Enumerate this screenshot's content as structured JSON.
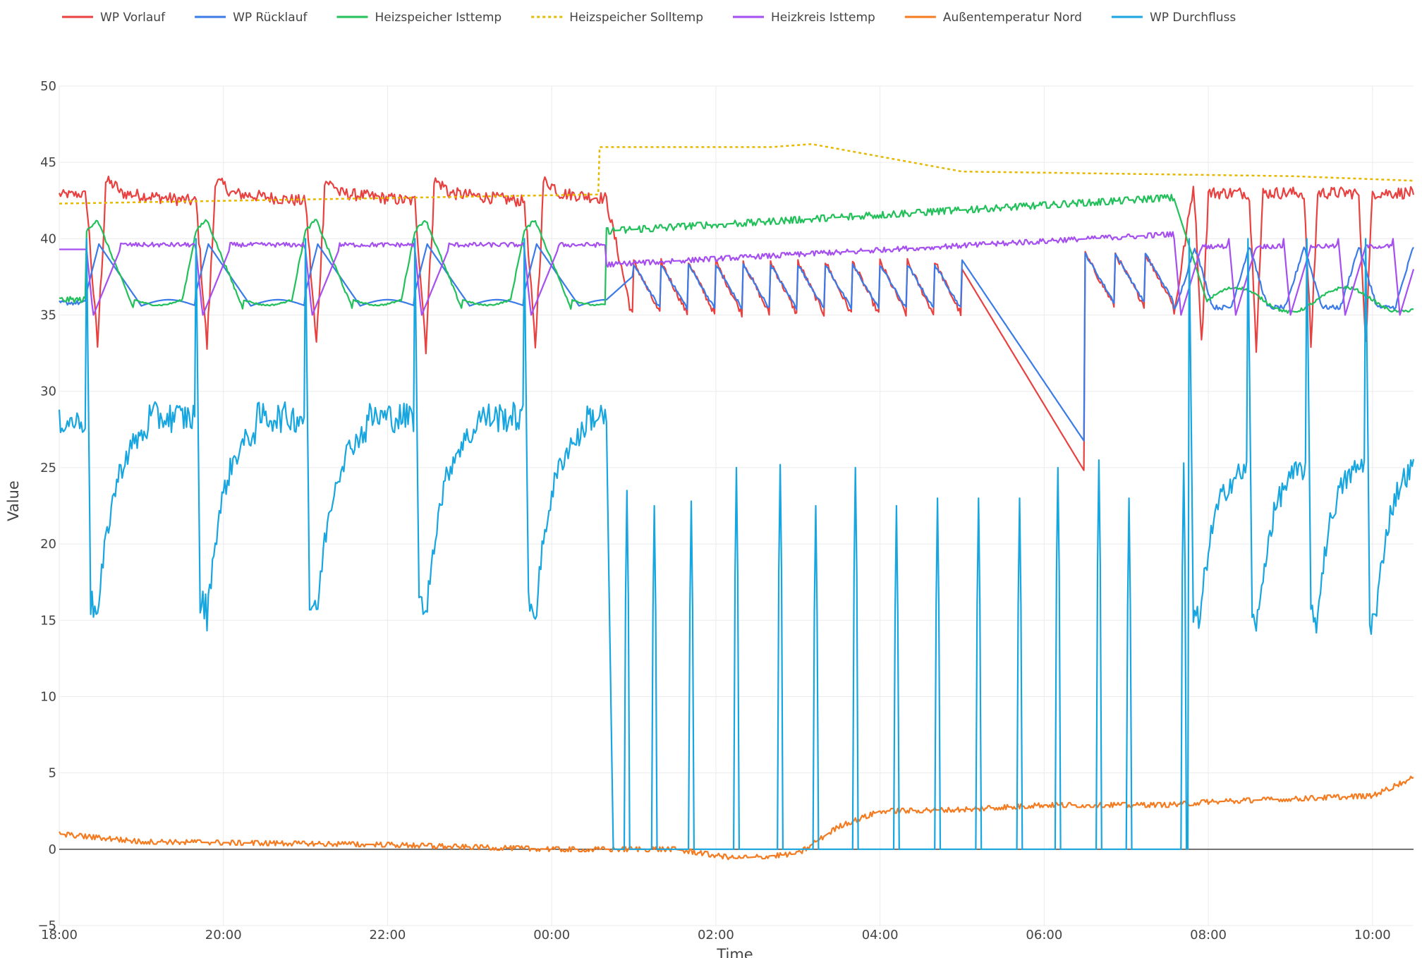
{
  "chart_data": {
    "type": "line",
    "xlabel": "Time",
    "ylabel": "Value",
    "ylim": [
      -5,
      50
    ],
    "yticks": [
      -5,
      0,
      5,
      10,
      15,
      20,
      25,
      30,
      35,
      40,
      45,
      50
    ],
    "xlim": [
      "18:00",
      "10:30 (+1d)"
    ],
    "xticks": [
      "18:00",
      "20:00",
      "22:00",
      "00:00",
      "02:00",
      "04:00",
      "06:00",
      "08:00",
      "10:00"
    ],
    "grid": true,
    "legend_position": "top-left, horizontal",
    "series": [
      {
        "name": "WP Vorlauf",
        "color": "#e8413f",
        "dash": "solid"
      },
      {
        "name": "WP Rücklauf",
        "color": "#3b7be8",
        "dash": "solid"
      },
      {
        "name": "Heizspeicher Isttemp",
        "color": "#22c05a",
        "dash": "solid"
      },
      {
        "name": "Heizspeicher Solltemp",
        "color": "#e6b800",
        "dash": "dotted"
      },
      {
        "name": "Heizkreis Isttemp",
        "color": "#a64ff0",
        "dash": "solid"
      },
      {
        "name": "Außentemperatur Nord",
        "color": "#f47b20",
        "dash": "solid"
      },
      {
        "name": "WP Durchfluss",
        "color": "#17a6e0",
        "dash": "solid"
      }
    ],
    "keypoints": {
      "WP Vorlauf": [
        [
          "18:00",
          42.8
        ],
        [
          "18:45",
          43.5
        ],
        [
          "00:30",
          42.8
        ],
        [
          "00:40",
          34.0
        ],
        [
          "05:00",
          38.5
        ],
        [
          "06:30",
          24.7
        ],
        [
          "06:30",
          38.5
        ],
        [
          "07:35",
          35.8
        ],
        [
          "07:45",
          43.5
        ],
        [
          "10:30",
          42.0
        ]
      ],
      "WP Rücklauf": [
        [
          "18:00",
          35.8
        ],
        [
          "00:45",
          36.0
        ],
        [
          "05:00",
          38.8
        ],
        [
          "06:30",
          26.5
        ],
        [
          "06:30",
          39.0
        ],
        [
          "07:45",
          35.5
        ],
        [
          "10:30",
          38.0
        ]
      ],
      "Heizspeicher Isttemp": [
        [
          "18:00",
          36.0
        ],
        [
          "00:45",
          40.5
        ],
        [
          "02:00",
          41.2
        ],
        [
          "04:00",
          42.0
        ],
        [
          "06:30",
          42.7
        ],
        [
          "07:35",
          42.6
        ],
        [
          "07:50",
          35.8
        ],
        [
          "10:30",
          35.0
        ]
      ],
      "Heizspeicher Solltemp": [
        [
          "18:00",
          42.3
        ],
        [
          "00:35",
          42.9
        ],
        [
          "00:35",
          46.0
        ],
        [
          "02:40",
          46.0
        ],
        [
          "03:10",
          46.2
        ],
        [
          "05:00",
          44.4
        ],
        [
          "06:30",
          44.2
        ],
        [
          "09:00",
          44.1
        ],
        [
          "10:30",
          43.8
        ]
      ],
      "Heizkreis Isttemp": [
        [
          "18:00",
          39.3
        ],
        [
          "00:45",
          38.3
        ],
        [
          "03:00",
          39.5
        ],
        [
          "06:30",
          40.3
        ],
        [
          "07:35",
          40.3
        ],
        [
          "08:10",
          39.5
        ],
        [
          "10:30",
          39.2
        ]
      ],
      "Außentemperatur Nord": [
        [
          "18:00",
          1.0
        ],
        [
          "19:00",
          0.5
        ],
        [
          "22:00",
          0.3
        ],
        [
          "00:00",
          0.0
        ],
        [
          "01:30",
          0.0
        ],
        [
          "02:15",
          -0.6
        ],
        [
          "03:00",
          -0.3
        ],
        [
          "03:30",
          1.5
        ],
        [
          "04:00",
          2.5
        ],
        [
          "05:00",
          2.6
        ],
        [
          "06:00",
          2.9
        ],
        [
          "07:30",
          2.9
        ],
        [
          "08:00",
          3.1
        ],
        [
          "09:00",
          3.3
        ],
        [
          "10:00",
          3.5
        ],
        [
          "10:30",
          4.7
        ]
      ],
      "WP Durchfluss": [
        [
          "18:00",
          28.0
        ],
        [
          "18:20",
          15.0
        ],
        [
          "18:50",
          28.5
        ],
        [
          "00:30",
          28.0
        ],
        [
          "00:40",
          0.0
        ],
        [
          "05:00",
          0.0
        ],
        [
          "06:30",
          0.0
        ],
        [
          "07:35",
          0.0
        ],
        [
          "07:45",
          13.0
        ],
        [
          "08:30",
          25.0
        ],
        [
          "10:30",
          24.0
        ]
      ],
      "WP Durchfluss_night_spikes_peak": [
        23.5,
        22.5,
        22.8,
        25.0,
        25.2,
        22.5,
        25.0,
        22.5,
        23.0,
        23.0,
        23.0,
        25.0,
        25.5,
        23.0,
        25.3,
        27.2,
        27.8
      ]
    }
  }
}
